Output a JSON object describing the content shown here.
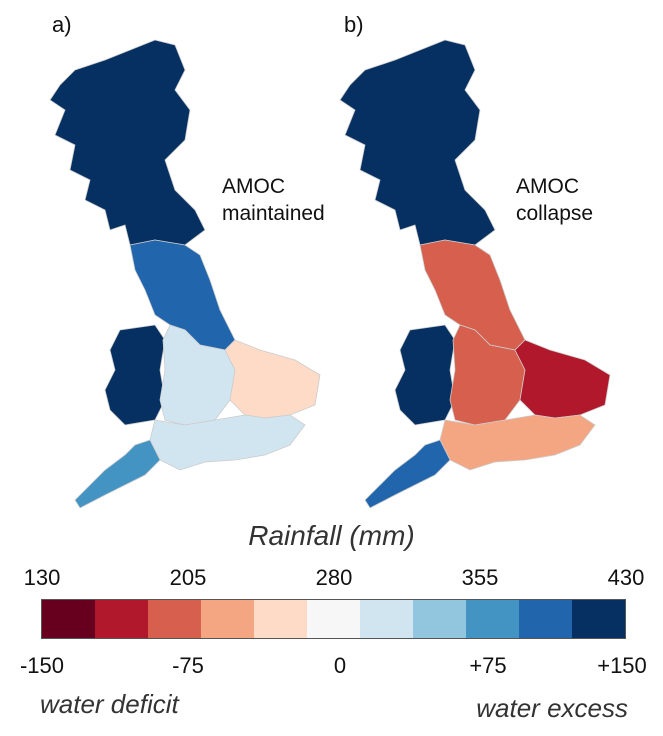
{
  "panels": {
    "a": {
      "label": "a)",
      "annotation_line1": "AMOC",
      "annotation_line2": "maintained"
    },
    "b": {
      "label": "b)",
      "annotation_line1": "AMOC",
      "annotation_line2": "collapse"
    }
  },
  "colorbar": {
    "title": "Rainfall (mm)",
    "top_ticks": [
      "130",
      "205",
      "280",
      "355",
      "430"
    ],
    "bottom_ticks": [
      "-150",
      "-75",
      "0",
      "+75",
      "+150"
    ],
    "left_caption": "water deficit",
    "right_caption": "water excess",
    "colors": [
      "#67001f",
      "#b2182b",
      "#d6604d",
      "#f4a582",
      "#fddbc7",
      "#f7f7f7",
      "#d1e5f0",
      "#92c5de",
      "#4393c3",
      "#2166ac",
      "#053061"
    ]
  },
  "map_colors": {
    "a": {
      "scotland": "#053061",
      "north_england": "#2166ac",
      "wales": "#053061",
      "midlands": "#d1e5f0",
      "east_anglia": "#fddbc7",
      "south_england": "#d1e5f0",
      "southwest": "#4393c3"
    },
    "b": {
      "scotland": "#053061",
      "north_england": "#d6604d",
      "wales": "#053061",
      "midlands": "#d6604d",
      "east_anglia": "#b2182b",
      "south_england": "#f4a582",
      "southwest": "#2166ac"
    }
  }
}
